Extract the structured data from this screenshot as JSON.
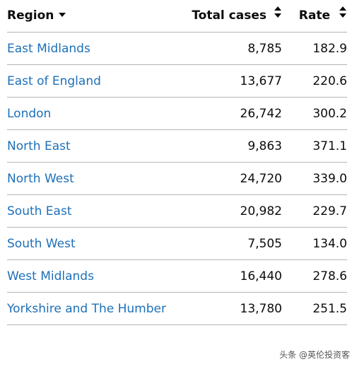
{
  "table": {
    "headers": {
      "region": "Region",
      "cases": "Total cases",
      "rate": "Rate"
    },
    "rows": [
      {
        "region": "East Midlands",
        "cases": "8,785",
        "rate": "182.9"
      },
      {
        "region": "East of England",
        "cases": "13,677",
        "rate": "220.6"
      },
      {
        "region": "London",
        "cases": "26,742",
        "rate": "300.2"
      },
      {
        "region": "North East",
        "cases": "9,863",
        "rate": "371.1"
      },
      {
        "region": "North West",
        "cases": "24,720",
        "rate": "339.0"
      },
      {
        "region": "South East",
        "cases": "20,982",
        "rate": "229.7"
      },
      {
        "region": "South West",
        "cases": "7,505",
        "rate": "134.0"
      },
      {
        "region": "West Midlands",
        "cases": "16,440",
        "rate": "278.6"
      },
      {
        "region": "Yorkshire and The Humber",
        "cases": "13,780",
        "rate": "251.5"
      }
    ],
    "sort": {
      "column": "region",
      "direction": "descending"
    }
  },
  "icons": {
    "region_sort": "sort-descending-icon",
    "cases_sort": "sort-both-icon",
    "rate_sort": "sort-both-icon"
  },
  "colors": {
    "link": "#1d70b8",
    "text": "#0b0c0c",
    "border": "#b1b4b6"
  },
  "watermark": {
    "text": "头条 @英伦投资客"
  }
}
